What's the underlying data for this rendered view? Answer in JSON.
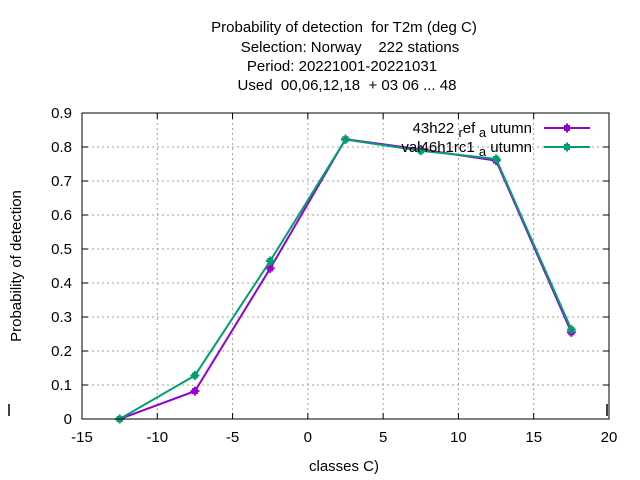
{
  "chart_data": {
    "type": "line",
    "title_lines": [
      "Probability of detection  for T2m (deg C)",
      "Selection: Norway    222 stations",
      "Period: 20221001-20221031",
      "Used  00,06,12,18  + 03 06 ... 48"
    ],
    "xlabel": "classes C)",
    "ylabel": "Probability of detection",
    "xlim": [
      -15,
      20
    ],
    "ylim": [
      0,
      0.9
    ],
    "xticks": [
      "-15",
      "-10",
      "-5",
      "0",
      "5",
      "10",
      "15",
      "20"
    ],
    "yticks": [
      "0",
      "0.1",
      "0.2",
      "0.3",
      "0.4",
      "0.5",
      "0.6",
      "0.7",
      "0.8",
      "0.9"
    ],
    "grid": true,
    "legend_position": "top-right",
    "x": [
      -12.5,
      -7.5,
      -2.5,
      2.5,
      7.5,
      12.5,
      17.5
    ],
    "series": [
      {
        "name": "43h22_ref_autumn",
        "name_parts": [
          "43h22",
          "ref",
          "a",
          "utumn"
        ],
        "color": "#9400d3",
        "values": [
          0.0,
          0.082,
          0.443,
          0.823,
          0.793,
          0.76,
          0.255
        ]
      },
      {
        "name": "val46h1rc1_autumn",
        "name_parts": [
          "val46h1rc1",
          "a",
          "utumn"
        ],
        "color": "#009e73",
        "values": [
          0.0,
          0.128,
          0.465,
          0.822,
          0.789,
          0.765,
          0.263
        ]
      }
    ]
  }
}
